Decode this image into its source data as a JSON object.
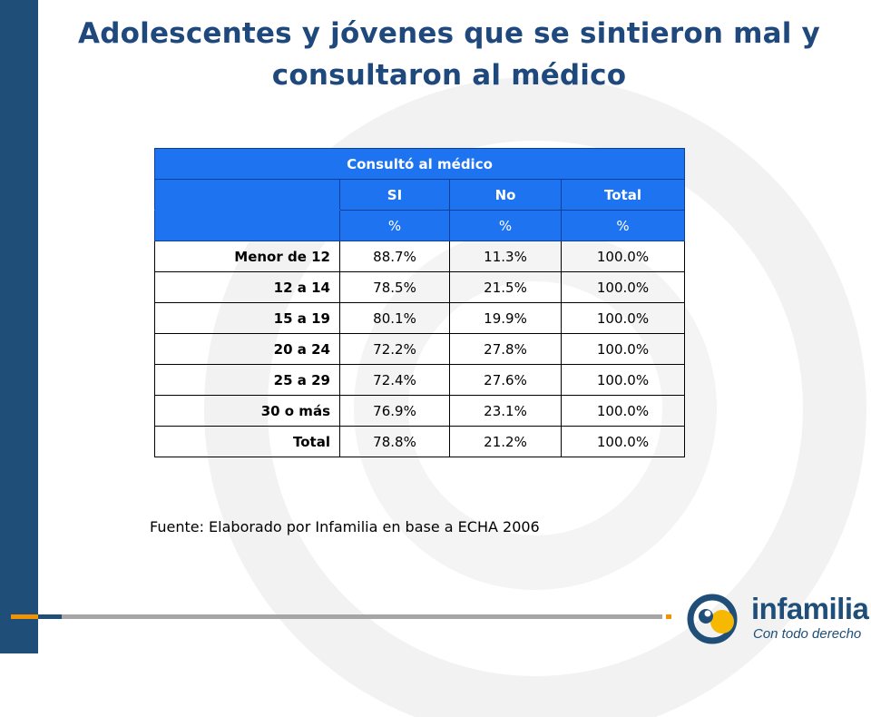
{
  "slide": {
    "title_line1": "Adolescentes y jóvenes que se sintieron mal y",
    "title_line2": "consultaron al médico",
    "source": "Fuente: Elaborado por Infamilia en base a ECHA 2006"
  },
  "table": {
    "group_header": "Consultó al médico",
    "columns": [
      "SI",
      "No",
      "Total"
    ],
    "units": [
      "%",
      "%",
      "%"
    ],
    "rows": [
      {
        "label": "Menor de 12",
        "si": "88.7%",
        "no": "11.3%",
        "total": "100.0%"
      },
      {
        "label": "12 a 14",
        "si": "78.5%",
        "no": "21.5%",
        "total": "100.0%"
      },
      {
        "label": "15 a 19",
        "si": "80.1%",
        "no": "19.9%",
        "total": "100.0%"
      },
      {
        "label": "20 a 24",
        "si": "72.2%",
        "no": "27.8%",
        "total": "100.0%"
      },
      {
        "label": "25 a 29",
        "si": "72.4%",
        "no": "27.6%",
        "total": "100.0%"
      },
      {
        "label": "30 o más",
        "si": "76.9%",
        "no": "23.1%",
        "total": "100.0%"
      },
      {
        "label": "Total",
        "si": "78.8%",
        "no": "21.2%",
        "total": "100.0%"
      }
    ]
  },
  "logo": {
    "name": "infamilia",
    "tagline": "Con todo derecho",
    "icon": "infamilia-logo-icon"
  },
  "colors": {
    "left_bar": "#1f4e79",
    "title": "#1f497d",
    "table_header": "#1e73f0",
    "accent_orange": "#f39200",
    "rule_gray": "#a6a6a6"
  }
}
